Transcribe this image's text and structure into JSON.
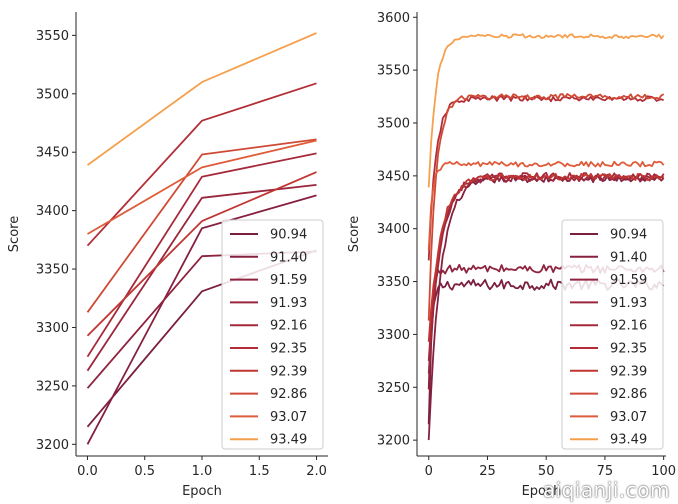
{
  "watermark": "aiqianji.com",
  "palette": [
    "#7a1f40",
    "#85213f",
    "#8f233e",
    "#9a263c",
    "#a6293a",
    "#b22d37",
    "#c03633",
    "#cf4a35",
    "#de5c3a",
    "#f5a04e"
  ],
  "chart_data": [
    {
      "type": "line",
      "xlabel": "Epoch",
      "ylabel": "Score",
      "xlim": [
        -0.1,
        2.1
      ],
      "ylim": [
        3190,
        3570
      ],
      "xticks": [
        0.0,
        0.5,
        1.0,
        1.5,
        2.0
      ],
      "xtick_labels": [
        "0.0",
        "0.5",
        "1.0",
        "1.5",
        "2.0"
      ],
      "yticks": [
        3200,
        3250,
        3300,
        3350,
        3400,
        3450,
        3500,
        3550
      ],
      "ytick_labels": [
        "3200",
        "3250",
        "3300",
        "3350",
        "3400",
        "3450",
        "3500",
        "3550"
      ],
      "x": [
        0,
        1,
        2
      ],
      "legend_position": "lower-right",
      "series": [
        {
          "name": "90.94",
          "values": [
            3215,
            3331,
            3366
          ]
        },
        {
          "name": "91.40",
          "values": [
            3200,
            3385,
            3413
          ]
        },
        {
          "name": "91.59",
          "values": [
            3248,
            3361,
            3365
          ]
        },
        {
          "name": "91.93",
          "values": [
            3263,
            3411,
            3422
          ]
        },
        {
          "name": "92.16",
          "values": [
            3275,
            3429,
            3449
          ]
        },
        {
          "name": "92.35",
          "values": [
            3370,
            3477,
            3509
          ]
        },
        {
          "name": "92.39",
          "values": [
            3293,
            3391,
            3433
          ]
        },
        {
          "name": "92.86",
          "values": [
            3313,
            3448,
            3461
          ]
        },
        {
          "name": "93.07",
          "values": [
            3380,
            3437,
            3460
          ]
        },
        {
          "name": "93.49",
          "values": [
            3439,
            3510,
            3552
          ]
        }
      ]
    },
    {
      "type": "line",
      "xlabel": "Epoch",
      "ylabel": "Score",
      "xlim": [
        -5,
        101
      ],
      "ylim": [
        3185,
        3605
      ],
      "xticks": [
        0,
        25,
        50,
        75,
        100
      ],
      "xtick_labels": [
        "0",
        "25",
        "50",
        "75",
        "100"
      ],
      "yticks": [
        3200,
        3250,
        3300,
        3350,
        3400,
        3450,
        3500,
        3550,
        3600
      ],
      "ytick_labels": [
        "3200",
        "3250",
        "3300",
        "3350",
        "3400",
        "3450",
        "3500",
        "3550",
        "3600"
      ],
      "legend_position": "lower-right",
      "series": [
        {
          "name": "90.94",
          "start": 3215,
          "plateau": 3347,
          "rise_epochs": 1.2,
          "noise": 5
        },
        {
          "name": "91.40",
          "start": 3200,
          "plateau": 3447,
          "rise_epochs": 5,
          "noise": 3
        },
        {
          "name": "91.59",
          "start": 3248,
          "plateau": 3362,
          "rise_epochs": 1.2,
          "noise": 4
        },
        {
          "name": "91.93",
          "start": 3263,
          "plateau": 3448,
          "rise_epochs": 5,
          "noise": 3
        },
        {
          "name": "92.16",
          "start": 3275,
          "plateau": 3450,
          "rise_epochs": 5,
          "noise": 3
        },
        {
          "name": "92.35",
          "start": 3370,
          "plateau": 3523,
          "rise_epochs": 3,
          "noise": 2.5
        },
        {
          "name": "92.39",
          "start": 3293,
          "plateau": 3449,
          "rise_epochs": 5,
          "noise": 3
        },
        {
          "name": "92.86",
          "start": 3313,
          "plateau": 3525,
          "rise_epochs": 3,
          "noise": 2.5
        },
        {
          "name": "93.07",
          "start": 3380,
          "plateau": 3461,
          "rise_epochs": 1.5,
          "noise": 2.5
        },
        {
          "name": "93.49",
          "start": 3439,
          "plateau": 3582,
          "rise_epochs": 3,
          "noise": 2
        }
      ]
    }
  ]
}
